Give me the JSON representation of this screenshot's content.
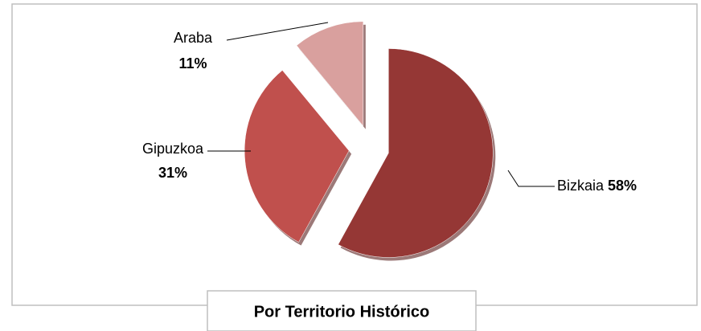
{
  "chart_data": {
    "type": "pie",
    "title": "Por Territorio Histórico",
    "categories": [
      "Bizkaia",
      "Gipuzkoa",
      "Araba"
    ],
    "values": [
      58,
      31,
      11
    ],
    "value_labels": [
      "58%",
      "31%",
      "11%"
    ],
    "colors": [
      "#953735",
      "#c0504d",
      "#d9a09e"
    ]
  }
}
